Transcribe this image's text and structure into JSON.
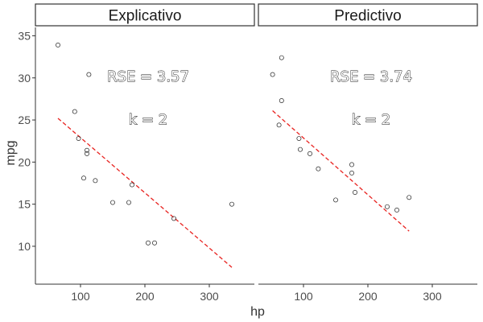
{
  "chart_data": {
    "type": "scatter",
    "xlabel": "hp",
    "ylabel": "mpg",
    "xlim": [
      30,
      370
    ],
    "ylim": [
      5.5,
      36
    ],
    "x_ticks": [
      100,
      200,
      300
    ],
    "y_ticks": [
      10,
      15,
      20,
      25,
      30,
      35
    ],
    "grid": false,
    "panels": [
      {
        "strip": "Explicativo",
        "annotations": [
          "RSE = 3.57",
          "k = 2"
        ],
        "points": [
          [
            65,
            33.9
          ],
          [
            113,
            30.4
          ],
          [
            91,
            26.0
          ],
          [
            97,
            22.8
          ],
          [
            110,
            21.4
          ],
          [
            110,
            21.0
          ],
          [
            105,
            18.1
          ],
          [
            123,
            17.8
          ],
          [
            150,
            15.2
          ],
          [
            175,
            15.2
          ],
          [
            180,
            17.3
          ],
          [
            245,
            13.3
          ],
          [
            205,
            10.4
          ],
          [
            215,
            10.4
          ],
          [
            335,
            15.0
          ]
        ],
        "trend": [
          [
            65,
            25.2
          ],
          [
            335,
            7.5
          ]
        ]
      },
      {
        "strip": "Predictivo",
        "annotations": [
          "RSE = 3.74",
          "k = 2"
        ],
        "points": [
          [
            66,
            32.4
          ],
          [
            52,
            30.4
          ],
          [
            66,
            27.3
          ],
          [
            62,
            24.4
          ],
          [
            93,
            22.8
          ],
          [
            95,
            21.5
          ],
          [
            110,
            21.0
          ],
          [
            123,
            19.2
          ],
          [
            175,
            19.7
          ],
          [
            175,
            18.7
          ],
          [
            180,
            16.4
          ],
          [
            150,
            15.5
          ],
          [
            230,
            14.7
          ],
          [
            245,
            14.3
          ],
          [
            264,
            15.8
          ]
        ],
        "trend": [
          [
            52,
            26.1
          ],
          [
            264,
            11.8
          ]
        ]
      }
    ]
  }
}
